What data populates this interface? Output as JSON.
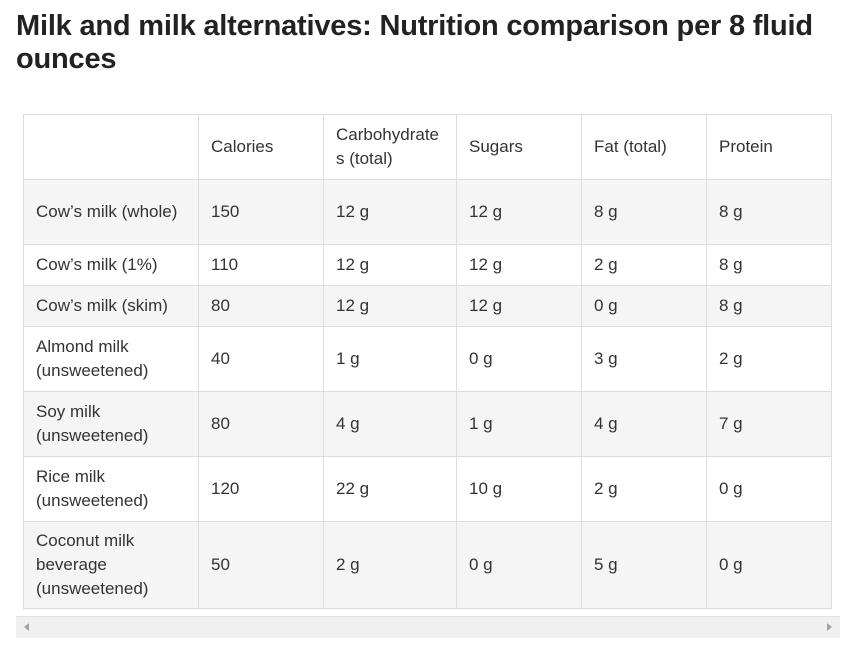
{
  "title": "Milk and milk alternatives: Nutrition comparison per 8 fluid ounces",
  "table": {
    "headers": [
      "",
      "Calories",
      "Carbohydrates (total)",
      "Sugars",
      "Fat (total)",
      "Protein"
    ],
    "rows": [
      {
        "name": "Cow’s milk (whole)",
        "calories": "150",
        "carbs": "12 g",
        "sugars": "12 g",
        "fat": "8 g",
        "protein": "8 g"
      },
      {
        "name": "Cow’s milk (1%)",
        "calories": "110",
        "carbs": "12 g",
        "sugars": "12 g",
        "fat": "2 g",
        "protein": "8 g"
      },
      {
        "name": "Cow’s milk (skim)",
        "calories": "80",
        "carbs": "12 g",
        "sugars": "12 g",
        "fat": "0 g",
        "protein": "8 g"
      },
      {
        "name": "Almond milk (unsweetened)",
        "calories": "40",
        "carbs": "1 g",
        "sugars": "0 g",
        "fat": "3 g",
        "protein": "2 g"
      },
      {
        "name": "Soy milk (unsweetened)",
        "calories": "80",
        "carbs": "4 g",
        "sugars": "1 g",
        "fat": "4 g",
        "protein": "7 g"
      },
      {
        "name": "Rice milk (unsweetened)",
        "calories": "120",
        "carbs": "22 g",
        "sugars": "10 g",
        "fat": "2 g",
        "protein": "0 g"
      },
      {
        "name": "Coconut milk beverage (unsweetened)",
        "calories": "50",
        "carbs": "2 g",
        "sugars": "0 g",
        "fat": "5 g",
        "protein": "0 g"
      }
    ]
  },
  "scrollbar": {
    "left_icon": "scroll-left-arrow-icon",
    "right_icon": "scroll-right-arrow-icon"
  },
  "colors": {
    "title": "#222222",
    "text": "#333333",
    "border": "#dddddd",
    "row_alt_bg": "#f5f5f5",
    "scrollbar_bg": "#f0f0f0"
  }
}
